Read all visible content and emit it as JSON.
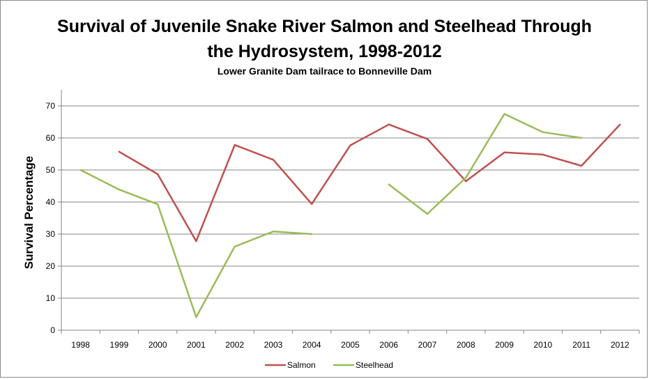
{
  "chart_data": {
    "type": "line",
    "title": "Survival of Juvenile Snake River Salmon and Steelhead Through",
    "title_line2": "the Hydrosystem, 1998-2012",
    "subtitle": "Lower Granite Dam tailrace to Bonneville Dam",
    "xlabel": "",
    "ylabel": "Survival Percentage",
    "categories": [
      "1998",
      "1999",
      "2000",
      "2001",
      "2002",
      "2003",
      "2004",
      "2005",
      "2006",
      "2007",
      "2008",
      "2009",
      "2010",
      "2011",
      "2012"
    ],
    "y_ticks": [
      "0",
      "10",
      "20",
      "30",
      "40",
      "50",
      "60",
      "70"
    ],
    "ylim": [
      0,
      75
    ],
    "grid": true,
    "legend_position": "bottom",
    "series": [
      {
        "name": "Salmon",
        "color": "#c0504d",
        "values": [
          null,
          55.7,
          48.7,
          27.8,
          57.8,
          53.2,
          39.4,
          57.7,
          64.2,
          59.7,
          46.5,
          55.5,
          54.8,
          51.3,
          64.2
        ]
      },
      {
        "name": "Steelhead",
        "color": "#9bbb59",
        "values": [
          50.0,
          43.9,
          39.3,
          4.1,
          26.1,
          30.8,
          30.0,
          null,
          45.5,
          36.3,
          47.6,
          67.5,
          61.8,
          60.0,
          null
        ]
      }
    ]
  }
}
